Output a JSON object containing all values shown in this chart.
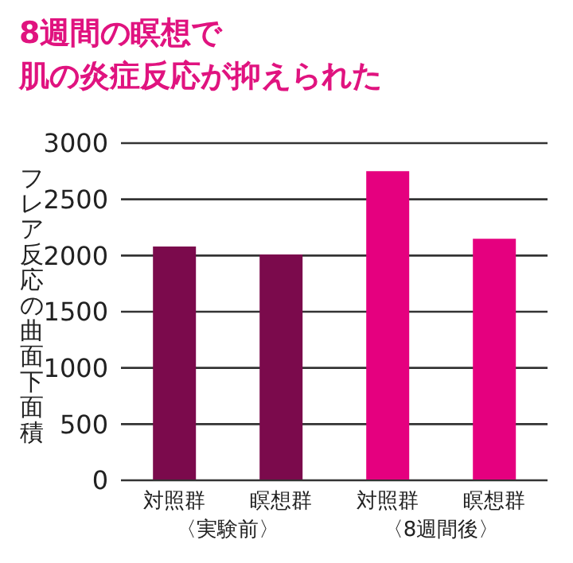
{
  "chart_data": {
    "type": "bar",
    "title": "8週間の瞑想で",
    "subtitle": "肌の炎症反応が抑えられた",
    "ylabel": "フレア反応の曲面下面積",
    "categories": [
      "対照群",
      "瞑想群",
      "対照群",
      "瞑想群"
    ],
    "values": [
      2080,
      2010,
      2750,
      2150
    ],
    "colors": [
      "#7b0a4c",
      "#7b0a4c",
      "#e5007f",
      "#e5007f"
    ],
    "ylim": [
      0,
      3000
    ],
    "yticks": [
      0,
      500,
      1000,
      1500,
      2000,
      2500,
      3000
    ],
    "grid": "y",
    "annotations": [
      "〈実験前〉",
      "〈8週間後〉"
    ]
  }
}
